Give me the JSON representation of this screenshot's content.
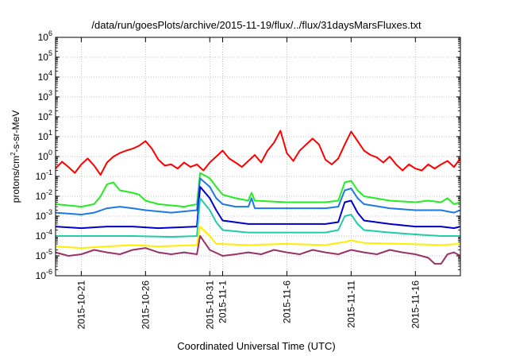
{
  "chart_data": {
    "type": "line",
    "title": "/data/run/goesPlots/archive/2015-11-19/flux/../flux/31daysMarsFluxes.txt",
    "xlabel": "Coordinated Universal Time (UTC)",
    "ylabel_main": "protons/cm",
    "ylabel_sup": "2",
    "ylabel_tail": "-s-sr-MeV",
    "yscale": "log",
    "ylim_exp": [
      -6,
      6
    ],
    "y_ticks": [
      {
        "base": "10",
        "exp": "-6"
      },
      {
        "base": "10",
        "exp": "-5"
      },
      {
        "base": "10",
        "exp": "-4"
      },
      {
        "base": "10",
        "exp": "-3"
      },
      {
        "base": "10",
        "exp": "-2"
      },
      {
        "base": "10",
        "exp": "-1"
      },
      {
        "base": "10",
        "exp": "0"
      },
      {
        "base": "10",
        "exp": "1"
      },
      {
        "base": "10",
        "exp": "2"
      },
      {
        "base": "10",
        "exp": "3"
      },
      {
        "base": "10",
        "exp": "4"
      },
      {
        "base": "10",
        "exp": "5"
      },
      {
        "base": "10",
        "exp": "6"
      }
    ],
    "xlim": [
      "2015-10-19",
      "2015-11-19T12:00"
    ],
    "x_ticks": [
      "2015-10-21",
      "2015-10-26",
      "2015-10-31",
      "2015-11-1",
      "2015-11-6",
      "2015-11-11",
      "2015-11-16"
    ],
    "grid": true,
    "series": [
      {
        "color": "#ff0000",
        "points": [
          [
            "2015-10-19",
            0.25
          ],
          [
            "2015-10-19T12:00",
            0.55
          ],
          [
            "2015-10-20",
            0.3
          ],
          [
            "2015-10-20T12:00",
            0.15
          ],
          [
            "2015-10-21",
            0.4
          ],
          [
            "2015-10-21T12:00",
            0.8
          ],
          [
            "2015-10-22",
            0.35
          ],
          [
            "2015-10-22T12:00",
            0.12
          ],
          [
            "2015-10-23",
            0.5
          ],
          [
            "2015-10-23T12:00",
            1.0
          ],
          [
            "2015-10-24",
            1.5
          ],
          [
            "2015-10-24T12:00",
            2.0
          ],
          [
            "2015-10-25",
            2.5
          ],
          [
            "2015-10-25T12:00",
            3.5
          ],
          [
            "2015-10-26",
            6.0
          ],
          [
            "2015-10-26T12:00",
            2.5
          ],
          [
            "2015-10-27",
            0.7
          ],
          [
            "2015-10-27T12:00",
            0.35
          ],
          [
            "2015-10-28",
            0.4
          ],
          [
            "2015-10-28T12:00",
            0.25
          ],
          [
            "2015-10-29",
            0.5
          ],
          [
            "2015-10-29T12:00",
            0.3
          ],
          [
            "2015-10-30",
            0.4
          ],
          [
            "2015-10-30T12:00",
            0.2
          ],
          [
            "2015-10-31",
            0.5
          ],
          [
            "2015-10-31T12:00",
            1.0
          ],
          [
            "2015-11-01",
            2.0
          ],
          [
            "2015-11-01T12:00",
            0.8
          ],
          [
            "2015-11-02",
            0.5
          ],
          [
            "2015-11-02T12:00",
            0.3
          ],
          [
            "2015-11-03",
            0.6
          ],
          [
            "2015-11-03T12:00",
            1.2
          ],
          [
            "2015-11-04",
            0.5
          ],
          [
            "2015-11-04T12:00",
            2.0
          ],
          [
            "2015-11-05",
            5.0
          ],
          [
            "2015-11-05T12:00",
            20.0
          ],
          [
            "2015-11-06",
            1.5
          ],
          [
            "2015-11-06T12:00",
            0.6
          ],
          [
            "2015-11-07",
            2.0
          ],
          [
            "2015-11-07T12:00",
            4.0
          ],
          [
            "2015-11-08",
            8.0
          ],
          [
            "2015-11-08T12:00",
            4.0
          ],
          [
            "2015-11-09",
            0.7
          ],
          [
            "2015-11-09T12:00",
            0.4
          ],
          [
            "2015-11-10",
            0.8
          ],
          [
            "2015-11-10T12:00",
            4.0
          ],
          [
            "2015-11-11",
            18.0
          ],
          [
            "2015-11-11T12:00",
            6.0
          ],
          [
            "2015-11-12",
            2.0
          ],
          [
            "2015-11-12T12:00",
            1.2
          ],
          [
            "2015-11-13",
            0.9
          ],
          [
            "2015-11-13T12:00",
            0.5
          ],
          [
            "2015-11-14",
            1.0
          ],
          [
            "2015-11-14T12:00",
            0.4
          ],
          [
            "2015-11-15",
            0.2
          ],
          [
            "2015-11-15T12:00",
            0.4
          ],
          [
            "2015-11-16",
            0.25
          ],
          [
            "2015-11-16T12:00",
            0.2
          ],
          [
            "2015-11-17",
            0.4
          ],
          [
            "2015-11-17T12:00",
            0.25
          ],
          [
            "2015-11-18",
            0.4
          ],
          [
            "2015-11-18T12:00",
            0.6
          ],
          [
            "2015-11-19",
            0.3
          ],
          [
            "2015-11-19T12:00",
            0.8
          ]
        ]
      },
      {
        "color": "#22ee22",
        "points": [
          [
            "2015-10-19",
            0.004
          ],
          [
            "2015-10-21",
            0.003
          ],
          [
            "2015-10-22",
            0.004
          ],
          [
            "2015-10-22T12:00",
            0.01
          ],
          [
            "2015-10-23",
            0.04
          ],
          [
            "2015-10-23T12:00",
            0.05
          ],
          [
            "2015-10-24",
            0.02
          ],
          [
            "2015-10-25",
            0.015
          ],
          [
            "2015-10-25T12:00",
            0.012
          ],
          [
            "2015-10-26",
            0.006
          ],
          [
            "2015-10-27",
            0.004
          ],
          [
            "2015-10-29",
            0.003
          ],
          [
            "2015-10-30",
            0.004
          ],
          [
            "2015-10-30T06:00",
            0.15
          ],
          [
            "2015-10-31",
            0.08
          ],
          [
            "2015-10-31T12:00",
            0.03
          ],
          [
            "2015-11-01",
            0.012
          ],
          [
            "2015-11-02",
            0.008
          ],
          [
            "2015-11-03",
            0.006
          ],
          [
            "2015-11-03T06:00",
            0.015
          ],
          [
            "2015-11-03T12:00",
            0.006
          ],
          [
            "2015-11-06",
            0.005
          ],
          [
            "2015-11-09",
            0.005
          ],
          [
            "2015-11-10",
            0.006
          ],
          [
            "2015-11-10T12:00",
            0.05
          ],
          [
            "2015-11-11",
            0.06
          ],
          [
            "2015-11-11T12:00",
            0.02
          ],
          [
            "2015-11-12",
            0.01
          ],
          [
            "2015-11-14",
            0.006
          ],
          [
            "2015-11-16",
            0.005
          ],
          [
            "2015-11-17",
            0.006
          ],
          [
            "2015-11-18",
            0.005
          ],
          [
            "2015-11-18T12:00",
            0.008
          ],
          [
            "2015-11-19",
            0.004
          ],
          [
            "2015-11-19T12:00",
            0.005
          ]
        ]
      },
      {
        "color": "#1e78e6",
        "points": [
          [
            "2015-10-19",
            0.0015
          ],
          [
            "2015-10-21",
            0.0012
          ],
          [
            "2015-10-22",
            0.0015
          ],
          [
            "2015-10-23",
            0.0025
          ],
          [
            "2015-10-24",
            0.003
          ],
          [
            "2015-10-25",
            0.0025
          ],
          [
            "2015-10-26",
            0.002
          ],
          [
            "2015-10-28",
            0.0015
          ],
          [
            "2015-10-30",
            0.002
          ],
          [
            "2015-10-30T06:00",
            0.08
          ],
          [
            "2015-10-31",
            0.03
          ],
          [
            "2015-10-31T12:00",
            0.008
          ],
          [
            "2015-11-01",
            0.004
          ],
          [
            "2015-11-02",
            0.003
          ],
          [
            "2015-11-03",
            0.003
          ],
          [
            "2015-11-03T06:00",
            0.008
          ],
          [
            "2015-11-03T12:00",
            0.0025
          ],
          [
            "2015-11-06",
            0.0025
          ],
          [
            "2015-11-09",
            0.0025
          ],
          [
            "2015-11-10",
            0.003
          ],
          [
            "2015-11-10T12:00",
            0.02
          ],
          [
            "2015-11-11",
            0.025
          ],
          [
            "2015-11-11T12:00",
            0.008
          ],
          [
            "2015-11-12",
            0.004
          ],
          [
            "2015-11-14",
            0.0025
          ],
          [
            "2015-11-16",
            0.002
          ],
          [
            "2015-11-18",
            0.002
          ],
          [
            "2015-11-19",
            0.0015
          ],
          [
            "2015-11-19T12:00",
            0.002
          ]
        ]
      },
      {
        "color": "#0000cc",
        "points": [
          [
            "2015-10-19",
            0.0003
          ],
          [
            "2015-10-21",
            0.00025
          ],
          [
            "2015-10-23",
            0.0003
          ],
          [
            "2015-10-25",
            0.0003
          ],
          [
            "2015-10-27",
            0.00025
          ],
          [
            "2015-10-30",
            0.0003
          ],
          [
            "2015-10-30T06:00",
            0.03
          ],
          [
            "2015-10-31",
            0.008
          ],
          [
            "2015-10-31T12:00",
            0.002
          ],
          [
            "2015-11-01",
            0.0006
          ],
          [
            "2015-11-03",
            0.0004
          ],
          [
            "2015-11-06",
            0.0004
          ],
          [
            "2015-11-09",
            0.0004
          ],
          [
            "2015-11-10",
            0.0005
          ],
          [
            "2015-11-10T12:00",
            0.005
          ],
          [
            "2015-11-11",
            0.006
          ],
          [
            "2015-11-11T12:00",
            0.0015
          ],
          [
            "2015-11-12",
            0.0006
          ],
          [
            "2015-11-14",
            0.0004
          ],
          [
            "2015-11-16",
            0.0003
          ],
          [
            "2015-11-18",
            0.0003
          ],
          [
            "2015-11-19",
            0.00025
          ],
          [
            "2015-11-19T12:00",
            0.0003
          ]
        ]
      },
      {
        "color": "#22ccaa",
        "points": [
          [
            "2015-10-19",
            0.0001
          ],
          [
            "2015-10-22",
            0.0001
          ],
          [
            "2015-10-25",
            0.0001
          ],
          [
            "2015-10-28",
            9e-05
          ],
          [
            "2015-10-30",
            0.0001
          ],
          [
            "2015-10-30T06:00",
            0.008
          ],
          [
            "2015-10-31",
            0.002
          ],
          [
            "2015-10-31T12:00",
            0.0005
          ],
          [
            "2015-11-01",
            0.0002
          ],
          [
            "2015-11-03",
            0.00015
          ],
          [
            "2015-11-06",
            0.00015
          ],
          [
            "2015-11-09",
            0.00015
          ],
          [
            "2015-11-10",
            0.0002
          ],
          [
            "2015-11-10T12:00",
            0.001
          ],
          [
            "2015-11-11",
            0.0012
          ],
          [
            "2015-11-11T12:00",
            0.0004
          ],
          [
            "2015-11-12",
            0.0002
          ],
          [
            "2015-11-14",
            0.00015
          ],
          [
            "2015-11-16",
            0.00012
          ],
          [
            "2015-11-18",
            0.0001
          ],
          [
            "2015-11-19T12:00",
            0.0001
          ]
        ]
      },
      {
        "color": "#ffee00",
        "points": [
          [
            "2015-10-19",
            3e-05
          ],
          [
            "2015-10-21",
            2.5e-05
          ],
          [
            "2015-10-23",
            3e-05
          ],
          [
            "2015-10-25",
            3.5e-05
          ],
          [
            "2015-10-27",
            3e-05
          ],
          [
            "2015-10-30",
            3.5e-05
          ],
          [
            "2015-10-30T06:00",
            0.0003
          ],
          [
            "2015-10-31",
            0.0001
          ],
          [
            "2015-10-31T12:00",
            4e-05
          ],
          [
            "2015-11-03",
            3.5e-05
          ],
          [
            "2015-11-06",
            4e-05
          ],
          [
            "2015-11-09",
            3.5e-05
          ],
          [
            "2015-11-10T12:00",
            5e-05
          ],
          [
            "2015-11-11",
            6e-05
          ],
          [
            "2015-11-12",
            4.5e-05
          ],
          [
            "2015-11-15",
            4e-05
          ],
          [
            "2015-11-18",
            3.5e-05
          ],
          [
            "2015-11-19T12:00",
            4e-05
          ]
        ]
      },
      {
        "color": "#993366",
        "points": [
          [
            "2015-10-19",
            1.5e-05
          ],
          [
            "2015-10-20",
            1e-05
          ],
          [
            "2015-10-21",
            1.2e-05
          ],
          [
            "2015-10-22",
            2e-05
          ],
          [
            "2015-10-23",
            1.5e-05
          ],
          [
            "2015-10-24",
            1.2e-05
          ],
          [
            "2015-10-25",
            2e-05
          ],
          [
            "2015-10-26",
            2.5e-05
          ],
          [
            "2015-10-27",
            1.5e-05
          ],
          [
            "2015-10-28",
            1.2e-05
          ],
          [
            "2015-10-29",
            1.5e-05
          ],
          [
            "2015-10-30",
            1.2e-05
          ],
          [
            "2015-10-30T06:00",
            0.0001
          ],
          [
            "2015-10-31",
            2e-05
          ],
          [
            "2015-11-01",
            1e-05
          ],
          [
            "2015-11-02",
            1.2e-05
          ],
          [
            "2015-11-03",
            1.5e-05
          ],
          [
            "2015-11-04",
            1.2e-05
          ],
          [
            "2015-11-05",
            2e-05
          ],
          [
            "2015-11-06",
            1.5e-05
          ],
          [
            "2015-11-07",
            1.2e-05
          ],
          [
            "2015-11-08",
            2e-05
          ],
          [
            "2015-11-09",
            1.5e-05
          ],
          [
            "2015-11-10",
            1.2e-05
          ],
          [
            "2015-11-11",
            2e-05
          ],
          [
            "2015-11-12",
            1.5e-05
          ],
          [
            "2015-11-13",
            1.2e-05
          ],
          [
            "2015-11-14",
            2e-05
          ],
          [
            "2015-11-15",
            1.5e-05
          ],
          [
            "2015-11-16",
            1.2e-05
          ],
          [
            "2015-11-17",
            8e-06
          ],
          [
            "2015-11-17T12:00",
            4e-06
          ],
          [
            "2015-11-18",
            4e-06
          ],
          [
            "2015-11-18T12:00",
            1.2e-05
          ],
          [
            "2015-11-19",
            1.5e-05
          ],
          [
            "2015-11-19T12:00",
            1e-05
          ]
        ]
      }
    ]
  }
}
